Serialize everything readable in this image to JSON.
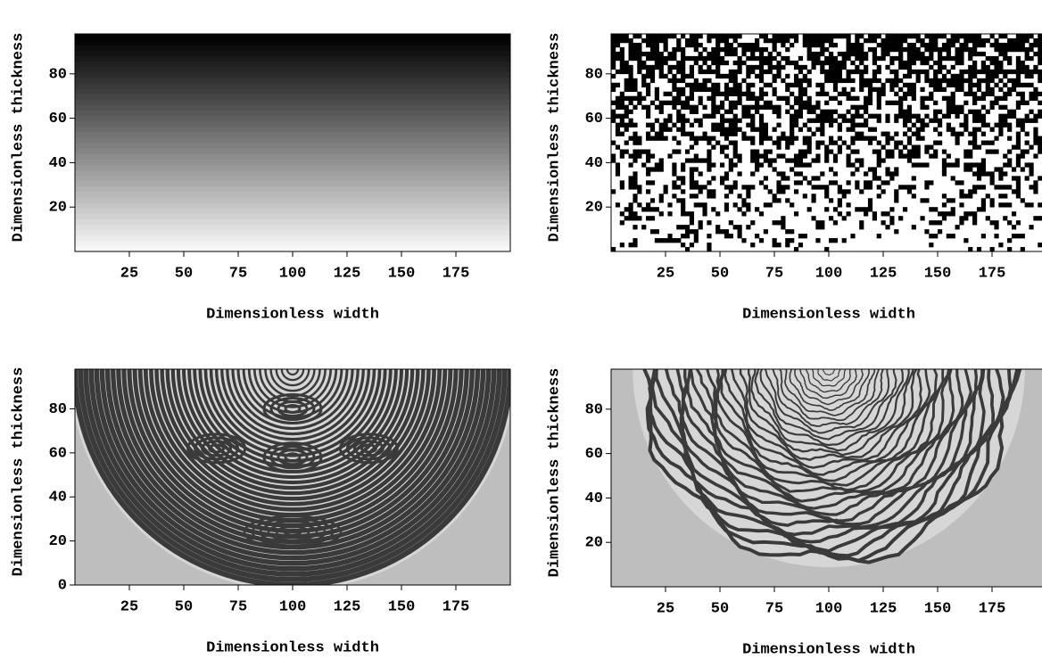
{
  "chart_data": [
    {
      "type": "image",
      "xlabel": "Dimensionless width",
      "ylabel": "Dimensionless thickness",
      "xlim": [
        0,
        200
      ],
      "ylim": [
        0,
        98
      ],
      "xticks": [
        25,
        50,
        75,
        100,
        125,
        150,
        175
      ],
      "yticks": [
        20,
        40,
        60,
        80
      ]
    },
    {
      "type": "image",
      "xlabel": "Dimensionless width",
      "ylabel": "Dimensionless thickness",
      "xlim": [
        0,
        200
      ],
      "ylim": [
        0,
        98
      ],
      "xticks": [
        25,
        50,
        75,
        100,
        125,
        150,
        175
      ],
      "yticks": [
        20,
        40,
        60,
        80
      ]
    },
    {
      "type": "image",
      "xlabel": "Dimensionless width",
      "ylabel": "Dimensionless thickness",
      "xlim": [
        0,
        200
      ],
      "ylim": [
        0,
        98
      ],
      "xticks": [
        25,
        50,
        75,
        100,
        125,
        150,
        175
      ],
      "yticks": [
        0,
        20,
        40,
        60,
        80
      ]
    },
    {
      "type": "image",
      "xlabel": "Dimensionless width",
      "ylabel": "Dimensionless thickness",
      "xlim": [
        0,
        200
      ],
      "ylim": [
        0,
        98
      ],
      "xticks": [
        25,
        50,
        75,
        100,
        125,
        150,
        175
      ],
      "yticks": [
        20,
        40,
        60,
        80
      ]
    }
  ]
}
